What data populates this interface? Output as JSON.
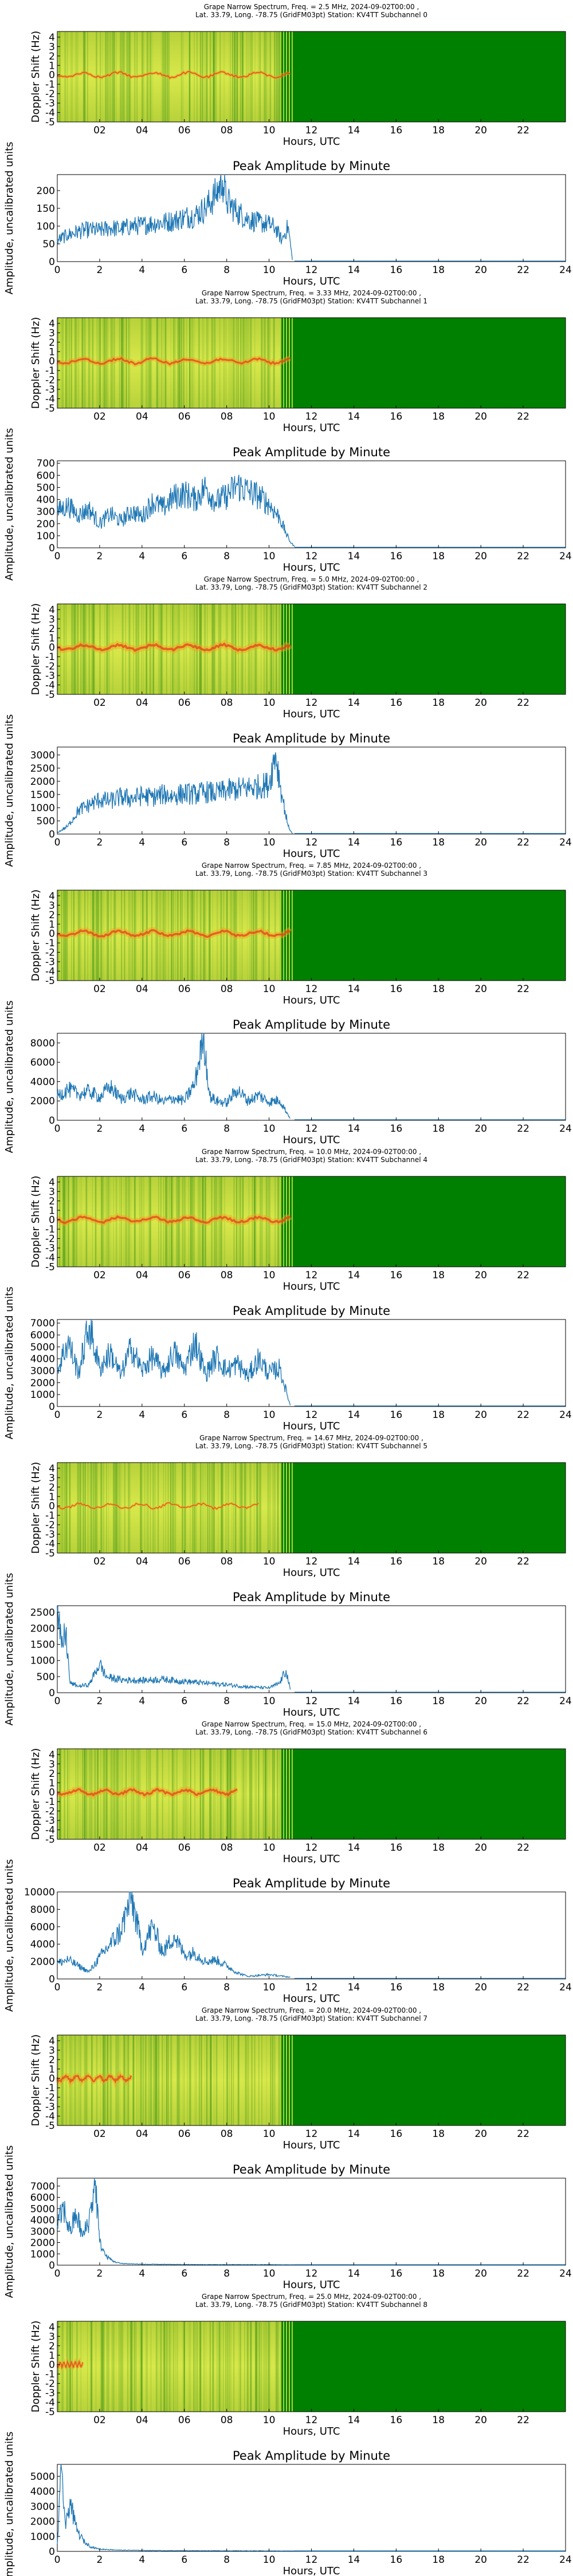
{
  "layout": {
    "subchannels": [
      {
        "id": 0,
        "title_line1": "Grape Narrow Spectrum, Freq. = 2.5 MHz, 2024-09-02T00:00 ,",
        "title_line2": "Lat.  33.79, Long. -78.75 (GridFM03pt) Station: KV4TT Subchannel 0"
      },
      {
        "id": 1,
        "title_line1": "Grape Narrow Spectrum, Freq. = 3.33 MHz, 2024-09-02T00:00 ,",
        "title_line2": "Lat.  33.79, Long. -78.75 (GridFM03pt) Station: KV4TT Subchannel 1"
      },
      {
        "id": 2,
        "title_line1": "Grape Narrow Spectrum, Freq. = 5.0 MHz, 2024-09-02T00:00 ,",
        "title_line2": "Lat.  33.79, Long. -78.75 (GridFM03pt) Station: KV4TT Subchannel 2"
      },
      {
        "id": 3,
        "title_line1": "Grape Narrow Spectrum, Freq. = 7.85 MHz, 2024-09-02T00:00 ,",
        "title_line2": "Lat.  33.79, Long. -78.75 (GridFM03pt) Station: KV4TT Subchannel 3"
      },
      {
        "id": 4,
        "title_line1": "Grape Narrow Spectrum, Freq. = 10.0 MHz, 2024-09-02T00:00 ,",
        "title_line2": "Lat.  33.79, Long. -78.75 (GridFM03pt) Station: KV4TT Subchannel 4"
      },
      {
        "id": 5,
        "title_line1": "Grape Narrow Spectrum, Freq. = 14.67 MHz, 2024-09-02T00:00 ,",
        "title_line2": "Lat.  33.79, Long. -78.75 (GridFM03pt) Station: KV4TT Subchannel 5"
      },
      {
        "id": 6,
        "title_line1": "Grape Narrow Spectrum, Freq. = 15.0 MHz, 2024-09-02T00:00 ,",
        "title_line2": "Lat.  33.79, Long. -78.75 (GridFM03pt) Station: KV4TT Subchannel 6"
      },
      {
        "id": 7,
        "title_line1": "Grape Narrow Spectrum, Freq. = 20.0 MHz, 2024-09-02T00:00 ,",
        "title_line2": "Lat.  33.79, Long. -78.75 (GridFM03pt) Station: KV4TT Subchannel 7"
      },
      {
        "id": 8,
        "title_line1": "Grape Narrow Spectrum, Freq. = 25.0 MHz, 2024-09-02T00:00 ,",
        "title_line2": "Lat.  33.79, Long. -78.75 (GridFM03pt) Station: KV4TT Subchannel 8"
      }
    ]
  },
  "labels": {
    "spectrogram_xlabel": "Hours, UTC",
    "spectrogram_ylabel": "Doppler Shift (Hz)",
    "amplitude_title": "Peak Amplitude by Minute",
    "amplitude_xlabel": "Hours, UTC",
    "amplitude_ylabel": "Amplitude, uncalibrated units",
    "spectrogram_xticks": [
      "02",
      "04",
      "06",
      "08",
      "10",
      "12",
      "14",
      "16",
      "18",
      "20",
      "22"
    ],
    "amplitude_xticks": [
      "0",
      "2",
      "4",
      "6",
      "8",
      "10",
      "12",
      "14",
      "16",
      "18",
      "20",
      "22",
      "24"
    ],
    "spectrogram_yticks": [
      "4",
      "3",
      "2",
      "1",
      "0",
      "-1",
      "-2",
      "-3",
      "-4",
      "-5"
    ]
  },
  "colors": {
    "no_data_green": "#008000",
    "trace_blue": "#1f77b4",
    "carrier_line": "#e8401c",
    "background_noise": "#c8d838"
  },
  "chart_data": [
    {
      "type": "heatmap",
      "subchannel": 0,
      "x_range_hours": [
        0,
        24
      ],
      "y_range_hz": [
        -5,
        4.6
      ],
      "data_end_hour": 11.2,
      "carrier_strength": 0.35,
      "signal_end_hour": 11.0
    },
    {
      "type": "line",
      "subchannel": 0,
      "title": "Peak Amplitude by Minute",
      "xlim": [
        0,
        24
      ],
      "yticks": [
        0,
        50,
        100,
        150,
        200
      ],
      "ylim": [
        0,
        245
      ],
      "x": [
        0,
        0.5,
        1,
        1.5,
        2,
        2.5,
        3,
        3.5,
        4,
        4.5,
        5,
        5.5,
        6,
        6.5,
        7,
        7.5,
        7.8,
        8,
        8.5,
        9,
        9.5,
        10,
        10.3,
        10.6,
        10.9,
        11.1
      ],
      "y": [
        60,
        75,
        85,
        90,
        88,
        95,
        92,
        100,
        102,
        108,
        110,
        115,
        125,
        130,
        150,
        190,
        230,
        170,
        140,
        120,
        110,
        105,
        95,
        60,
        100,
        5
      ]
    },
    {
      "type": "heatmap",
      "subchannel": 1,
      "x_range_hours": [
        0,
        24
      ],
      "y_range_hz": [
        -5,
        4.6
      ],
      "data_end_hour": 11.2,
      "carrier_strength": 0.7,
      "signal_end_hour": 11.0
    },
    {
      "type": "line",
      "subchannel": 1,
      "title": "Peak Amplitude by Minute",
      "xlim": [
        0,
        24
      ],
      "yticks": [
        0,
        100,
        200,
        300,
        400,
        500,
        600,
        700
      ],
      "ylim": [
        0,
        720
      ],
      "x": [
        0,
        0.5,
        1,
        1.5,
        2,
        2.5,
        3,
        3.5,
        4,
        4.5,
        5,
        5.5,
        6,
        6.5,
        7,
        7.5,
        8,
        8.5,
        9,
        9.5,
        10,
        10.5,
        10.8,
        11,
        11.2
      ],
      "y": [
        300,
        350,
        270,
        320,
        200,
        280,
        220,
        300,
        260,
        380,
        330,
        420,
        450,
        400,
        500,
        380,
        430,
        520,
        470,
        430,
        360,
        250,
        120,
        50,
        10
      ]
    },
    {
      "type": "heatmap",
      "subchannel": 2,
      "x_range_hours": [
        0,
        24
      ],
      "y_range_hz": [
        -5,
        4.6
      ],
      "data_end_hour": 11.2,
      "carrier_strength": 0.95,
      "signal_end_hour": 11.0
    },
    {
      "type": "line",
      "subchannel": 2,
      "title": "Peak Amplitude by Minute",
      "xlim": [
        0,
        24
      ],
      "yticks": [
        0,
        500,
        1000,
        1500,
        2000,
        2500,
        3000
      ],
      "ylim": [
        0,
        3300
      ],
      "x": [
        0,
        0.5,
        1,
        1.5,
        2,
        2.5,
        3,
        3.5,
        4,
        4.5,
        5,
        5.5,
        6,
        6.5,
        7,
        7.5,
        8,
        8.5,
        9,
        9.5,
        10,
        10.3,
        10.6,
        10.9,
        11.1
      ],
      "y": [
        50,
        300,
        900,
        1100,
        1300,
        1250,
        1400,
        1350,
        1450,
        1400,
        1500,
        1450,
        1550,
        1500,
        1600,
        1550,
        1650,
        1700,
        1750,
        1800,
        1900,
        3100,
        1500,
        300,
        10
      ]
    },
    {
      "type": "heatmap",
      "subchannel": 3,
      "x_range_hours": [
        0,
        24
      ],
      "y_range_hz": [
        -5,
        4.6
      ],
      "data_end_hour": 11.2,
      "carrier_strength": 0.85,
      "signal_end_hour": 11.0
    },
    {
      "type": "line",
      "subchannel": 3,
      "title": "Peak Amplitude by Minute",
      "xlim": [
        0,
        24
      ],
      "yticks": [
        0,
        2000,
        4000,
        6000,
        8000
      ],
      "ylim": [
        0,
        9000
      ],
      "x": [
        0,
        0.5,
        1,
        1.5,
        2,
        2.5,
        3,
        3.5,
        4,
        4.5,
        5,
        5.5,
        6,
        6.5,
        6.9,
        7.2,
        7.5,
        8,
        8.5,
        9,
        9.5,
        10,
        10.5,
        11
      ],
      "y": [
        2500,
        3200,
        2700,
        3000,
        2400,
        3500,
        2200,
        2800,
        2100,
        2500,
        1900,
        2300,
        2000,
        3800,
        8800,
        2500,
        2000,
        1800,
        3200,
        2000,
        2600,
        1900,
        2100,
        200
      ]
    },
    {
      "type": "heatmap",
      "subchannel": 4,
      "x_range_hours": [
        0,
        24
      ],
      "y_range_hz": [
        -5,
        4.6
      ],
      "data_end_hour": 11.2,
      "carrier_strength": 0.85,
      "signal_end_hour": 11.0
    },
    {
      "type": "line",
      "subchannel": 4,
      "title": "Peak Amplitude by Minute",
      "xlim": [
        0,
        24
      ],
      "yticks": [
        0,
        1000,
        2000,
        3000,
        4000,
        5000,
        6000,
        7000
      ],
      "ylim": [
        0,
        7300
      ],
      "x": [
        0,
        0.5,
        1,
        1.5,
        2,
        2.5,
        3,
        3.5,
        4,
        4.5,
        5,
        5.5,
        6,
        6.5,
        7,
        7.5,
        8,
        8.5,
        9,
        9.5,
        10,
        10.5,
        11
      ],
      "y": [
        3000,
        5500,
        2800,
        6800,
        3200,
        4500,
        2600,
        5000,
        3000,
        4200,
        2800,
        4600,
        3100,
        5500,
        2700,
        4200,
        3000,
        3600,
        2500,
        4000,
        2800,
        3200,
        100
      ]
    },
    {
      "type": "heatmap",
      "subchannel": 5,
      "x_range_hours": [
        0,
        24
      ],
      "y_range_hz": [
        -5,
        4.6
      ],
      "data_end_hour": 11.2,
      "carrier_strength": 0.2,
      "signal_end_hour": 9.5
    },
    {
      "type": "line",
      "subchannel": 5,
      "title": "Peak Amplitude by Minute",
      "xlim": [
        0,
        24
      ],
      "yticks": [
        0,
        500,
        1000,
        1500,
        2000,
        2500
      ],
      "ylim": [
        0,
        2700
      ],
      "x": [
        0,
        0.2,
        0.4,
        0.6,
        1,
        1.5,
        2,
        2.3,
        2.6,
        3,
        4,
        5,
        6,
        7,
        8,
        9,
        10,
        10.5,
        10.8,
        11
      ],
      "y": [
        2500,
        1400,
        1900,
        300,
        200,
        250,
        900,
        500,
        450,
        400,
        380,
        420,
        350,
        300,
        250,
        180,
        150,
        300,
        700,
        100
      ]
    },
    {
      "type": "heatmap",
      "subchannel": 6,
      "x_range_hours": [
        0,
        24
      ],
      "y_range_hz": [
        -5,
        4.6
      ],
      "data_end_hour": 11.2,
      "carrier_strength": 0.8,
      "signal_end_hour": 8.5
    },
    {
      "type": "line",
      "subchannel": 6,
      "title": "Peak Amplitude by Minute",
      "xlim": [
        0,
        24
      ],
      "yticks": [
        0,
        2000,
        4000,
        6000,
        8000,
        10000
      ],
      "ylim": [
        0,
        10000
      ],
      "x": [
        0,
        0.5,
        1,
        1.5,
        2,
        2.5,
        3,
        3.5,
        4,
        4.5,
        5,
        5.5,
        6,
        6.5,
        7,
        7.5,
        8,
        8.5,
        9,
        10,
        11
      ],
      "y": [
        1800,
        2200,
        1500,
        800,
        2500,
        4000,
        5500,
        9500,
        3500,
        6000,
        3000,
        5000,
        2800,
        3000,
        2000,
        2200,
        1500,
        700,
        300,
        500,
        200
      ]
    },
    {
      "type": "heatmap",
      "subchannel": 7,
      "x_range_hours": [
        0,
        24
      ],
      "y_range_hz": [
        -5,
        4.6
      ],
      "data_end_hour": 11.2,
      "carrier_strength": 0.6,
      "signal_end_hour": 3.5
    },
    {
      "type": "line",
      "subchannel": 7,
      "title": "Peak Amplitude by Minute",
      "xlim": [
        0,
        24
      ],
      "yticks": [
        0,
        1000,
        2000,
        3000,
        4000,
        5000,
        6000,
        7000
      ],
      "ylim": [
        0,
        7700
      ],
      "x": [
        0,
        0.3,
        0.6,
        0.9,
        1.2,
        1.5,
        1.8,
        2.0,
        2.3,
        2.7,
        3,
        4,
        6,
        8,
        10,
        11,
        12,
        24
      ],
      "y": [
        3500,
        5000,
        3000,
        4500,
        2500,
        4000,
        7500,
        2000,
        800,
        300,
        150,
        80,
        60,
        50,
        50,
        40,
        30,
        30
      ]
    },
    {
      "type": "heatmap",
      "subchannel": 8,
      "x_range_hours": [
        0,
        24
      ],
      "y_range_hz": [
        -5,
        4.6
      ],
      "data_end_hour": 11.2,
      "carrier_strength": 0.25,
      "signal_end_hour": 1.2
    },
    {
      "type": "line",
      "subchannel": 8,
      "title": "Peak Amplitude by Minute",
      "xlim": [
        0,
        24
      ],
      "yticks": [
        0,
        1000,
        2000,
        3000,
        4000,
        5000
      ],
      "ylim": [
        0,
        5800
      ],
      "x": [
        0,
        0.2,
        0.4,
        0.6,
        0.8,
        1.0,
        1.3,
        1.6,
        2,
        3,
        5,
        8,
        11,
        12,
        24
      ],
      "y": [
        500,
        5500,
        1500,
        3500,
        2000,
        1200,
        600,
        300,
        150,
        80,
        50,
        40,
        30,
        20,
        20
      ]
    }
  ]
}
